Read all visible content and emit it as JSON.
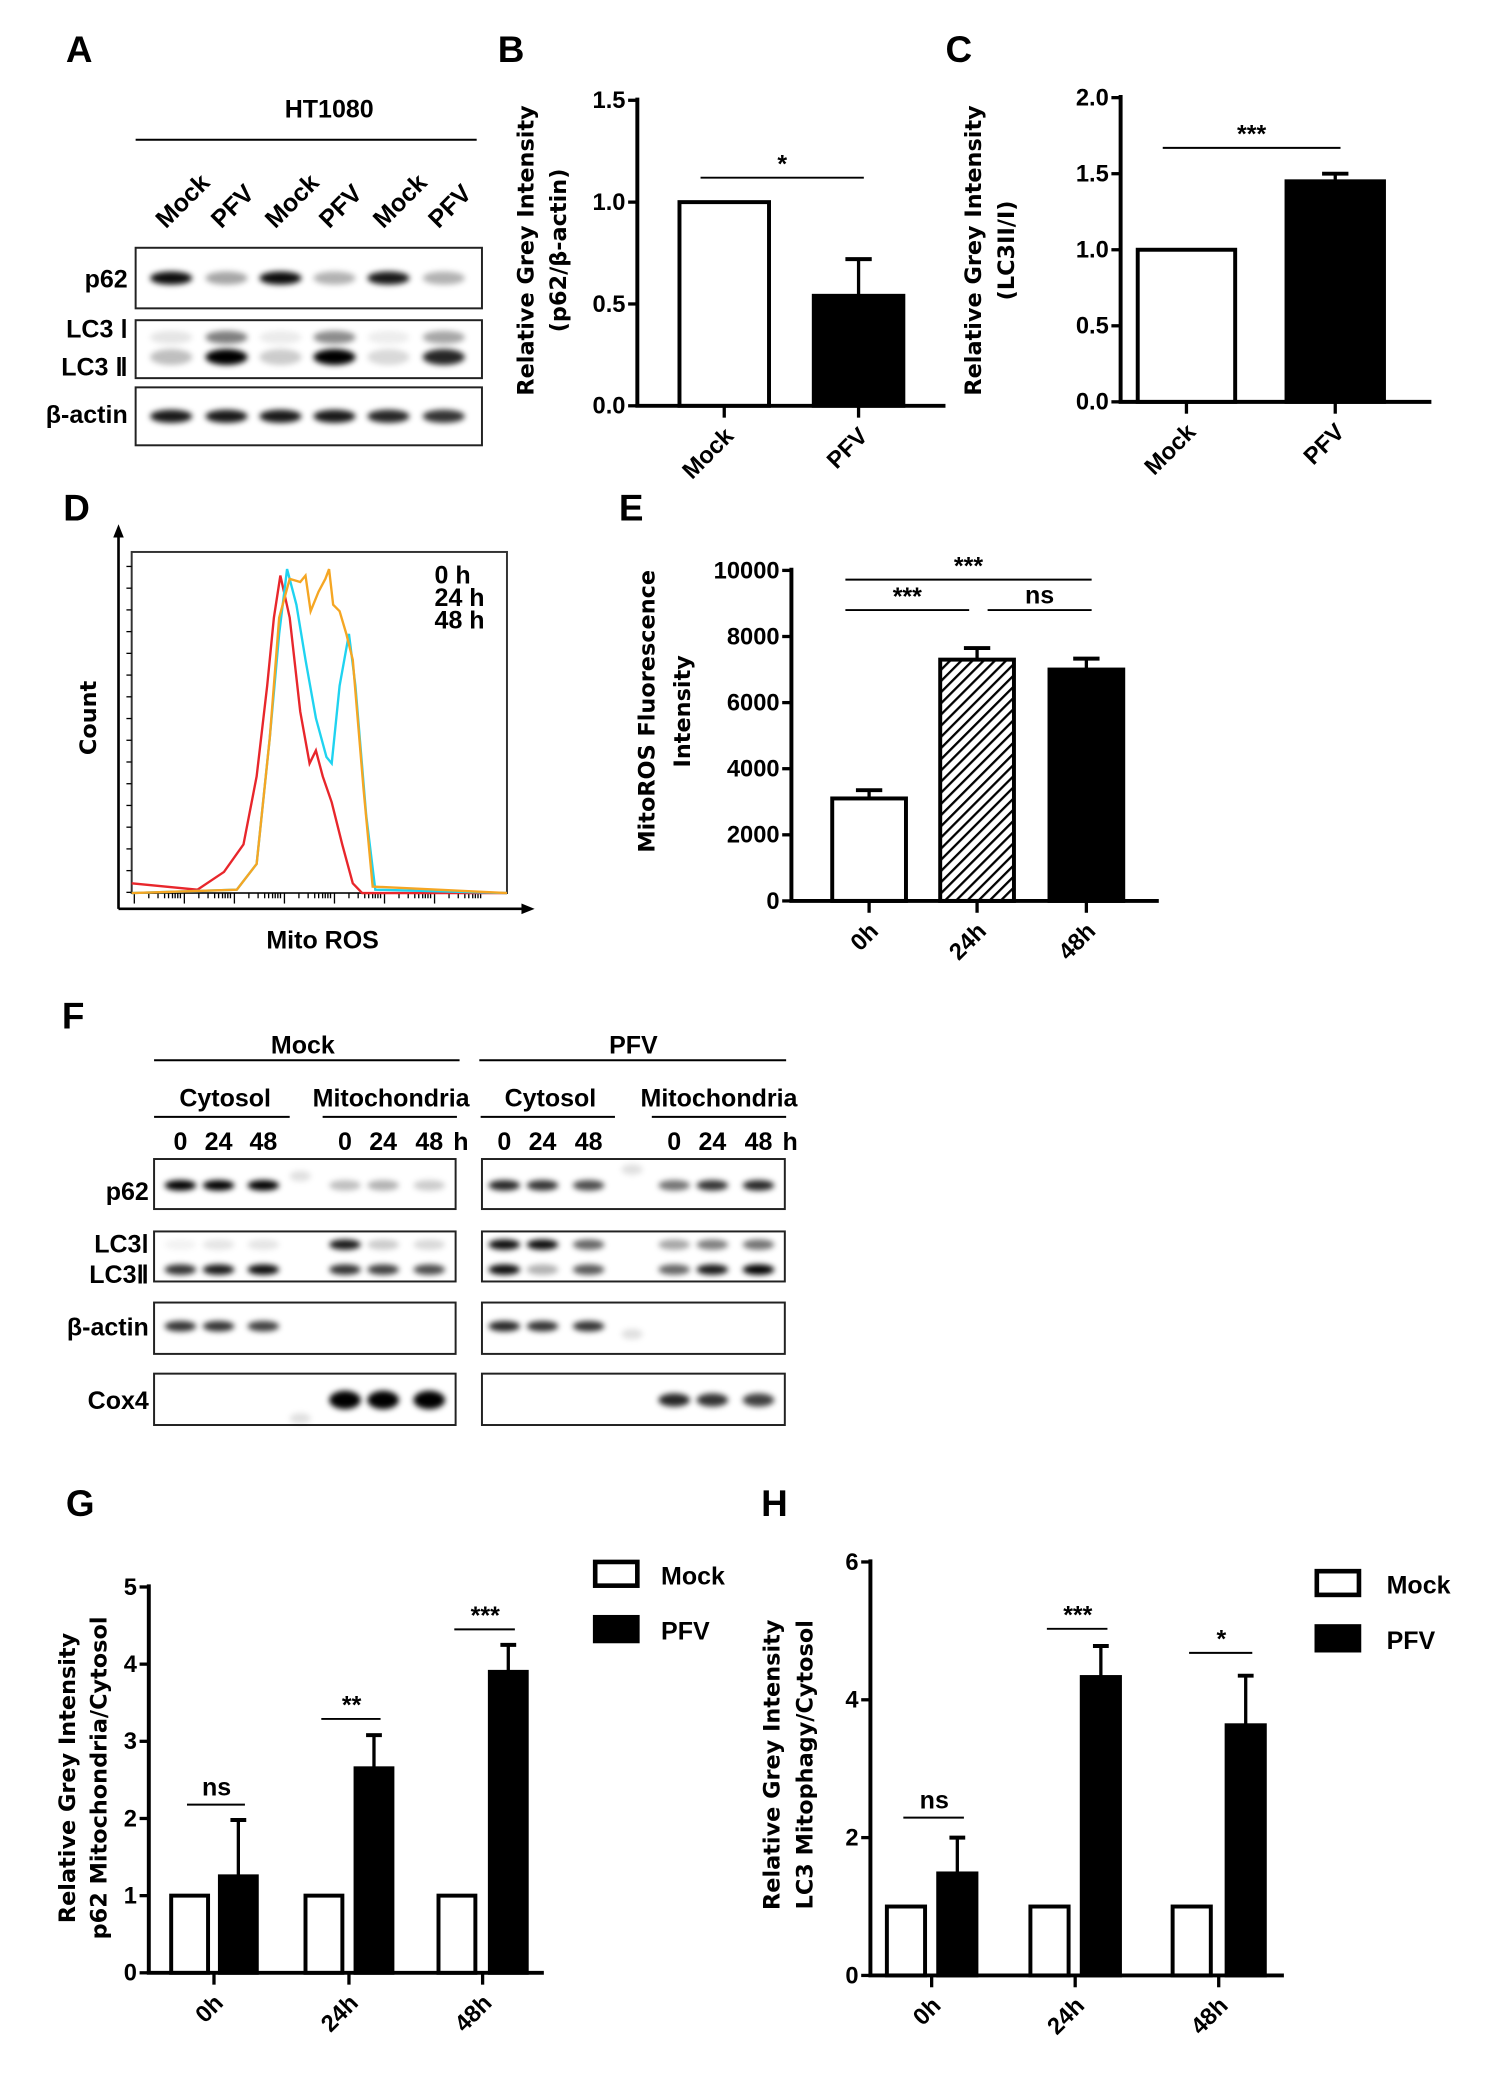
{
  "panel_labels": [
    "A",
    "B",
    "C",
    "D",
    "E",
    "F",
    "G",
    "H"
  ],
  "panel_a": {
    "cell_line": "HT1080",
    "lanes": [
      "Mock",
      "PFV",
      "Mock",
      "PFV",
      "Mock",
      "PFV"
    ],
    "rows": [
      {
        "label": "p62",
        "bands": [
          0.95,
          0.35,
          0.95,
          0.3,
          0.9,
          0.3
        ]
      },
      {
        "label": "LC3 Ⅰ",
        "bands": [
          0.1,
          0.5,
          0.08,
          0.45,
          0.07,
          0.35
        ]
      },
      {
        "label": "LC3 Ⅱ",
        "bands": [
          0.25,
          1,
          0.2,
          1,
          0.15,
          0.85
        ]
      },
      {
        "label": "β-actin",
        "bands": [
          0.9,
          0.9,
          0.9,
          0.9,
          0.85,
          0.8
        ]
      }
    ]
  },
  "panel_f": {
    "conditions": [
      "Mock",
      "PFV"
    ],
    "fractions": [
      "Cytosol",
      "Mitochondria",
      "Cytosol",
      "Mitochondria"
    ],
    "times": [
      "0",
      "24",
      "48"
    ],
    "time_unit": "h",
    "rows": [
      {
        "label": "p62",
        "mock": [
          1,
          1,
          1,
          0.25,
          0.3,
          0.2
        ],
        "pfv": [
          0.85,
          0.8,
          0.7,
          0.55,
          0.8,
          0.85
        ]
      },
      {
        "label": "LC3Ⅰ",
        "mock": [
          0.05,
          0.1,
          0.1,
          0.9,
          0.2,
          0.15
        ],
        "pfv": [
          0.95,
          0.95,
          0.6,
          0.35,
          0.5,
          0.55
        ]
      },
      {
        "label": "LC3Ⅱ",
        "mock": [
          0.8,
          0.9,
          0.95,
          0.8,
          0.75,
          0.7
        ],
        "pfv": [
          0.95,
          0.3,
          0.65,
          0.6,
          0.9,
          1
        ]
      },
      {
        "label": "β-actin",
        "mock": [
          0.8,
          0.8,
          0.75,
          0,
          0,
          0
        ],
        "pfv": [
          0.85,
          0.8,
          0.8,
          0,
          0,
          0
        ]
      },
      {
        "label": "Cox4",
        "mock": [
          0,
          0,
          0,
          1,
          1,
          1
        ],
        "pfv": [
          0,
          0,
          0,
          0.85,
          0.8,
          0.75
        ]
      }
    ]
  },
  "panel_d": {
    "type": "histogram",
    "xlabel": "Mito ROS",
    "ylabel": "Count",
    "series": [
      {
        "name": "0 h",
        "color": "#e8262b",
        "points": [
          [
            0,
            3
          ],
          [
            17.5,
            1
          ],
          [
            24.6,
            6.5
          ],
          [
            29.8,
            15
          ],
          [
            33.3,
            36
          ],
          [
            36.1,
            64
          ],
          [
            37.9,
            85
          ],
          [
            39.6,
            98
          ],
          [
            42.1,
            85
          ],
          [
            44.9,
            56
          ],
          [
            47.4,
            40
          ],
          [
            49.1,
            44
          ],
          [
            50.9,
            36
          ],
          [
            53.3,
            28
          ],
          [
            56.1,
            15
          ],
          [
            58.9,
            3
          ],
          [
            61.4,
            0
          ],
          [
            100,
            0
          ]
        ]
      },
      {
        "name": "24 h",
        "color": "#1fd3f0",
        "points": [
          [
            0,
            0
          ],
          [
            28,
            1
          ],
          [
            33.3,
            9
          ],
          [
            36.8,
            48
          ],
          [
            39.3,
            80
          ],
          [
            41.4,
            100
          ],
          [
            43.9,
            89
          ],
          [
            46.3,
            72
          ],
          [
            49.1,
            54
          ],
          [
            51.9,
            42
          ],
          [
            53.3,
            40
          ],
          [
            55.4,
            64
          ],
          [
            57.9,
            80
          ],
          [
            59.6,
            64
          ],
          [
            62.5,
            24
          ],
          [
            64.9,
            1
          ],
          [
            100,
            0
          ]
        ]
      },
      {
        "name": "48 h",
        "color": "#f5a623",
        "points": [
          [
            0,
            0
          ],
          [
            28,
            1
          ],
          [
            33.3,
            9
          ],
          [
            36.8,
            48
          ],
          [
            39.3,
            85
          ],
          [
            42.1,
            97
          ],
          [
            44.9,
            96
          ],
          [
            46.3,
            98
          ],
          [
            47.7,
            87
          ],
          [
            49.8,
            93
          ],
          [
            51.6,
            97
          ],
          [
            52.6,
            100
          ],
          [
            53.7,
            89
          ],
          [
            55.4,
            87
          ],
          [
            57.2,
            80
          ],
          [
            58.9,
            72
          ],
          [
            61.8,
            32
          ],
          [
            64.2,
            2
          ],
          [
            100,
            0
          ]
        ]
      }
    ]
  },
  "chart_data": [
    {
      "id": "B",
      "type": "bar",
      "ylabel": [
        "Relative Grey Intensity",
        "(p62/β-actin)"
      ],
      "categories": [
        "Mock",
        "PFV"
      ],
      "values": [
        1.0,
        0.54
      ],
      "errors": [
        0,
        0.18
      ],
      "fills": [
        "white",
        "black"
      ],
      "ylim": [
        0,
        1.5
      ],
      "yticks": [
        0,
        0.5,
        1.0,
        1.5
      ],
      "ytick_labels": [
        "0.0",
        "0.5",
        "1.0",
        "1.5"
      ],
      "significance": [
        {
          "from": 0,
          "to": 1,
          "level": 1.12,
          "label": "*"
        }
      ]
    },
    {
      "id": "C",
      "type": "bar",
      "ylabel": [
        "Relative Grey Intensity",
        "(LC3II/I)"
      ],
      "categories": [
        "Mock",
        "PFV"
      ],
      "values": [
        1.0,
        1.45
      ],
      "errors": [
        0,
        0.05
      ],
      "fills": [
        "white",
        "black"
      ],
      "ylim": [
        0,
        2.0
      ],
      "yticks": [
        0,
        0.5,
        1.0,
        1.5,
        2.0
      ],
      "ytick_labels": [
        "0.0",
        "0.5",
        "1.0",
        "1.5",
        "2.0"
      ],
      "significance": [
        {
          "from": 0,
          "to": 1,
          "level": 1.67,
          "label": "***"
        }
      ]
    },
    {
      "id": "E",
      "type": "bar",
      "ylabel": [
        "MitoROS Fluorescence",
        "Intensity"
      ],
      "categories": [
        "0h",
        "24h",
        "48h"
      ],
      "values": [
        3100,
        7300,
        7000
      ],
      "errors": [
        250,
        350,
        330
      ],
      "fills": [
        "white",
        "hatch",
        "black"
      ],
      "ylim": [
        0,
        10000
      ],
      "yticks": [
        0,
        2000,
        4000,
        6000,
        8000,
        10000
      ],
      "ytick_labels": [
        "0",
        "2000",
        "4000",
        "6000",
        "8000",
        "10000"
      ],
      "significance": [
        {
          "from": 0,
          "to": 2,
          "level": 9720,
          "label": "***"
        },
        {
          "from": 0,
          "to": 1,
          "level": 8800,
          "label": "***"
        },
        {
          "from": 1,
          "to": 2,
          "level": 8800,
          "label": "ns"
        }
      ]
    },
    {
      "id": "G",
      "type": "bar",
      "ylabel": [
        "Relative Grey Intensity",
        "p62 Mitochondria/Cytosol"
      ],
      "categories": [
        "0h",
        "24h",
        "48h"
      ],
      "series": [
        {
          "name": "Mock",
          "values": [
            1,
            1,
            1
          ],
          "errors": [
            0,
            0,
            0
          ],
          "fill": "white"
        },
        {
          "name": "PFV",
          "values": [
            1.25,
            2.65,
            3.9
          ],
          "errors": [
            0.73,
            0.43,
            0.35
          ],
          "fill": "black"
        }
      ],
      "ylim": [
        0,
        5
      ],
      "yticks": [
        0,
        1,
        2,
        3,
        4,
        5
      ],
      "ytick_labels": [
        "0",
        "1",
        "2",
        "3",
        "4",
        "5"
      ],
      "significance": [
        {
          "group": 0,
          "level": 2.18,
          "label": "ns"
        },
        {
          "group": 1,
          "level": 3.29,
          "label": "**"
        },
        {
          "group": 2,
          "level": 4.45,
          "label": "***"
        }
      ],
      "legend": "top-right"
    },
    {
      "id": "H",
      "type": "bar",
      "ylabel": [
        "Relative Grey Intensity",
        "LC3 Mitophagy/Cytosol"
      ],
      "categories": [
        "0h",
        "24h",
        "48h"
      ],
      "series": [
        {
          "name": "Mock",
          "values": [
            1,
            1,
            1
          ],
          "errors": [
            0,
            0,
            0
          ],
          "fill": "white"
        },
        {
          "name": "PFV",
          "values": [
            1.48,
            4.33,
            3.63
          ],
          "errors": [
            0.52,
            0.45,
            0.72
          ],
          "fill": "black"
        }
      ],
      "ylim": [
        0,
        6
      ],
      "yticks": [
        0,
        2,
        4,
        6
      ],
      "ytick_labels": [
        "0",
        "2",
        "4",
        "6"
      ],
      "significance": [
        {
          "group": 0,
          "level": 2.29,
          "label": "ns"
        },
        {
          "group": 1,
          "level": 5.03,
          "label": "***"
        },
        {
          "group": 2,
          "level": 4.68,
          "label": "*"
        }
      ],
      "legend": "top-right"
    }
  ]
}
